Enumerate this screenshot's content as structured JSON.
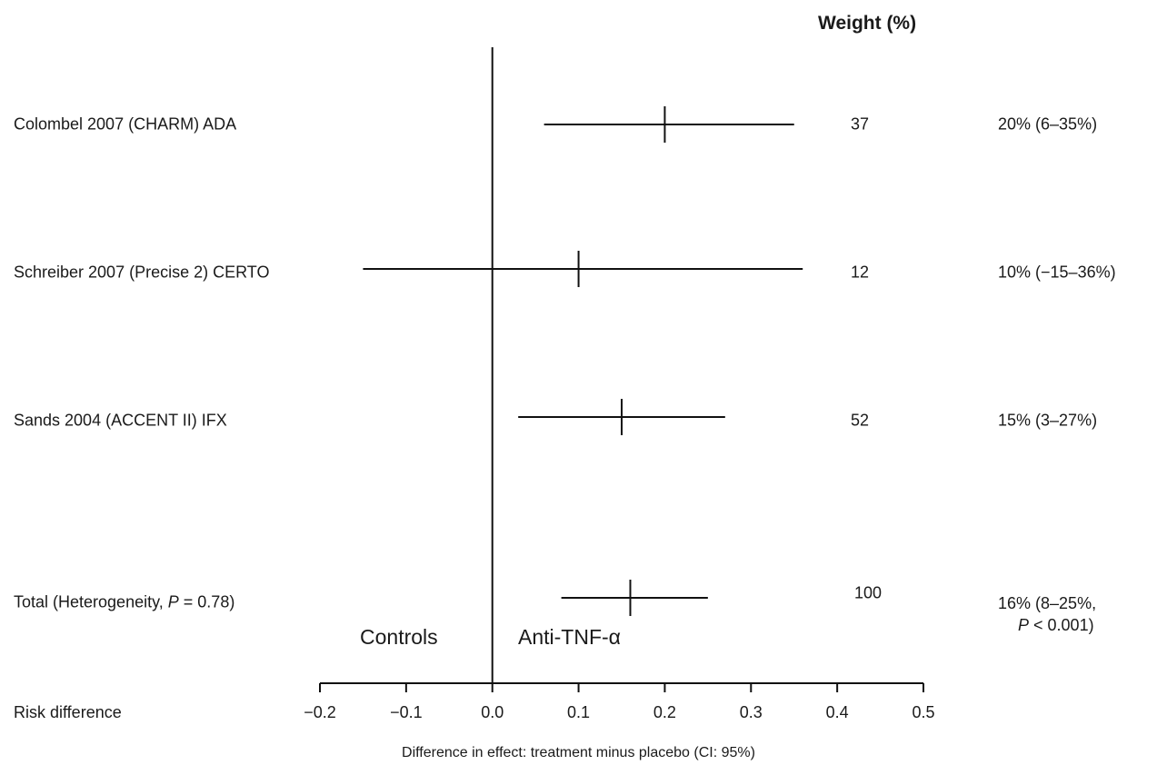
{
  "chart_data": {
    "type": "forest",
    "weight_header": "Weight (%)",
    "xlabel": "Difference in effect:  treatment minus placebo (CI: 95%)",
    "axis_label": "Risk difference",
    "xlim": [
      -0.2,
      0.5
    ],
    "ticks": [
      "−0.2",
      "−0.1",
      "0.0",
      "0.1",
      "0.2",
      "0.3",
      "0.4",
      "0.5"
    ],
    "tick_values": [
      -0.2,
      -0.1,
      0.0,
      0.1,
      0.2,
      0.3,
      0.4,
      0.5
    ],
    "left_side_label": "Controls",
    "right_side_label": "Anti-TNF-α",
    "rows": [
      {
        "label": "Colombel 2007 (CHARM) ADA",
        "estimate": 0.2,
        "ci_low": 0.06,
        "ci_high": 0.35,
        "weight": "37",
        "effect_text": "20% (6–35%)"
      },
      {
        "label": "Schreiber 2007 (Precise 2) CERTO",
        "estimate": 0.1,
        "ci_low": -0.15,
        "ci_high": 0.36,
        "weight": "12",
        "effect_text": "10% (−15–36%)"
      },
      {
        "label": "Sands 2004 (ACCENT II) IFX",
        "estimate": 0.15,
        "ci_low": 0.03,
        "ci_high": 0.27,
        "weight": "52",
        "effect_text": "15% (3–27%)"
      },
      {
        "label_prefix": "Total (Heterogeneity, ",
        "label_p": "P",
        "label_suffix": " = 0.78)",
        "estimate": 0.16,
        "ci_low": 0.08,
        "ci_high": 0.25,
        "weight": "100",
        "effect_line1": "16% (8–25%,",
        "effect_p": "P",
        "effect_line2_suffix": " < 0.001)"
      }
    ]
  }
}
